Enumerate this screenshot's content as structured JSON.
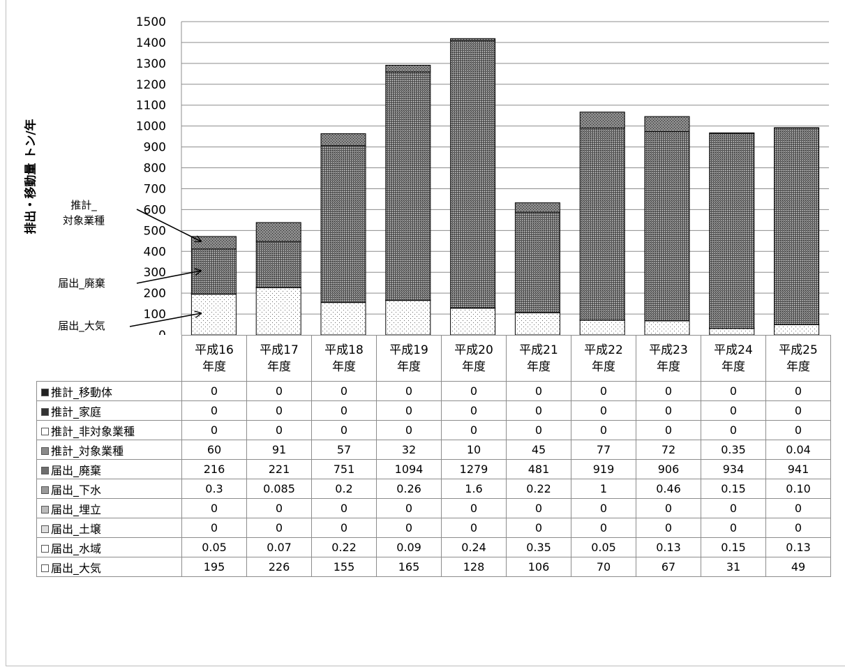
{
  "chart_data": {
    "type": "bar",
    "stacked": true,
    "ylabel": "排出・移動量 トン/年",
    "ylim": [
      0,
      1500
    ],
    "yticks": [
      0,
      100,
      200,
      300,
      400,
      500,
      600,
      700,
      800,
      900,
      1000,
      1100,
      1200,
      1300,
      1400,
      1500
    ],
    "grid": true,
    "categories": [
      [
        "平成16",
        "年度"
      ],
      [
        "平成17",
        "年度"
      ],
      [
        "平成18",
        "年度"
      ],
      [
        "平成19",
        "年度"
      ],
      [
        "平成20",
        "年度"
      ],
      [
        "平成21",
        "年度"
      ],
      [
        "平成22",
        "年度"
      ],
      [
        "平成23",
        "年度"
      ],
      [
        "平成24",
        "年度"
      ],
      [
        "平成25",
        "年度"
      ]
    ],
    "series": [
      {
        "name": "推計_移動体",
        "values": [
          "0",
          "0",
          "0",
          "0",
          "0",
          "0",
          "0",
          "0",
          "0",
          "0"
        ],
        "pattern": "dots-dense"
      },
      {
        "name": "推計_家庭",
        "values": [
          "0",
          "0",
          "0",
          "0",
          "0",
          "0",
          "0",
          "0",
          "0",
          "0"
        ],
        "pattern": "grid"
      },
      {
        "name": "推計_非対象業種",
        "values": [
          "0",
          "0",
          "0",
          "0",
          "0",
          "0",
          "0",
          "0",
          "0",
          "0"
        ],
        "pattern": "none"
      },
      {
        "name": "推計_対象業種",
        "values": [
          "60",
          "91",
          "57",
          "32",
          "10",
          "45",
          "77",
          "72",
          "0.35",
          "0.04"
        ],
        "pattern": "dots"
      },
      {
        "name": "届出_廃棄",
        "values": [
          "216",
          "221",
          "751",
          "1094",
          "1279",
          "481",
          "919",
          "906",
          "934",
          "941"
        ],
        "pattern": "crosshatch"
      },
      {
        "name": "届出_下水",
        "values": [
          "0.3",
          "0.085",
          "0.2",
          "0.26",
          "1.6",
          "0.22",
          "1",
          "0.46",
          "0.15",
          "0.10"
        ],
        "pattern": "checker"
      },
      {
        "name": "届出_埋立",
        "values": [
          "0",
          "0",
          "0",
          "0",
          "0",
          "0",
          "0",
          "0",
          "0",
          "0"
        ],
        "pattern": "fine"
      },
      {
        "name": "届出_土壌",
        "values": [
          "0",
          "0",
          "0",
          "0",
          "0",
          "0",
          "0",
          "0",
          "0",
          "0"
        ],
        "pattern": "dots-medium"
      },
      {
        "name": "届出_水域",
        "values": [
          "0.05",
          "0.07",
          "0.22",
          "0.09",
          "0.24",
          "0.35",
          "0.05",
          "0.13",
          "0.15",
          "0.13"
        ],
        "pattern": "dots-sparse"
      },
      {
        "name": "届出_大気",
        "values": [
          "195",
          "226",
          "155",
          "165",
          "128",
          "106",
          "70",
          "67",
          "31",
          "49"
        ],
        "pattern": "dots-light"
      }
    ],
    "annotations": [
      {
        "label": [
          "推計_",
          "対象業種"
        ],
        "points_to": "推計_対象業種"
      },
      {
        "label": [
          "届出_廃棄"
        ],
        "points_to": "届出_廃棄"
      },
      {
        "label": [
          "届出_大気"
        ],
        "points_to": "届出_大気"
      }
    ]
  }
}
